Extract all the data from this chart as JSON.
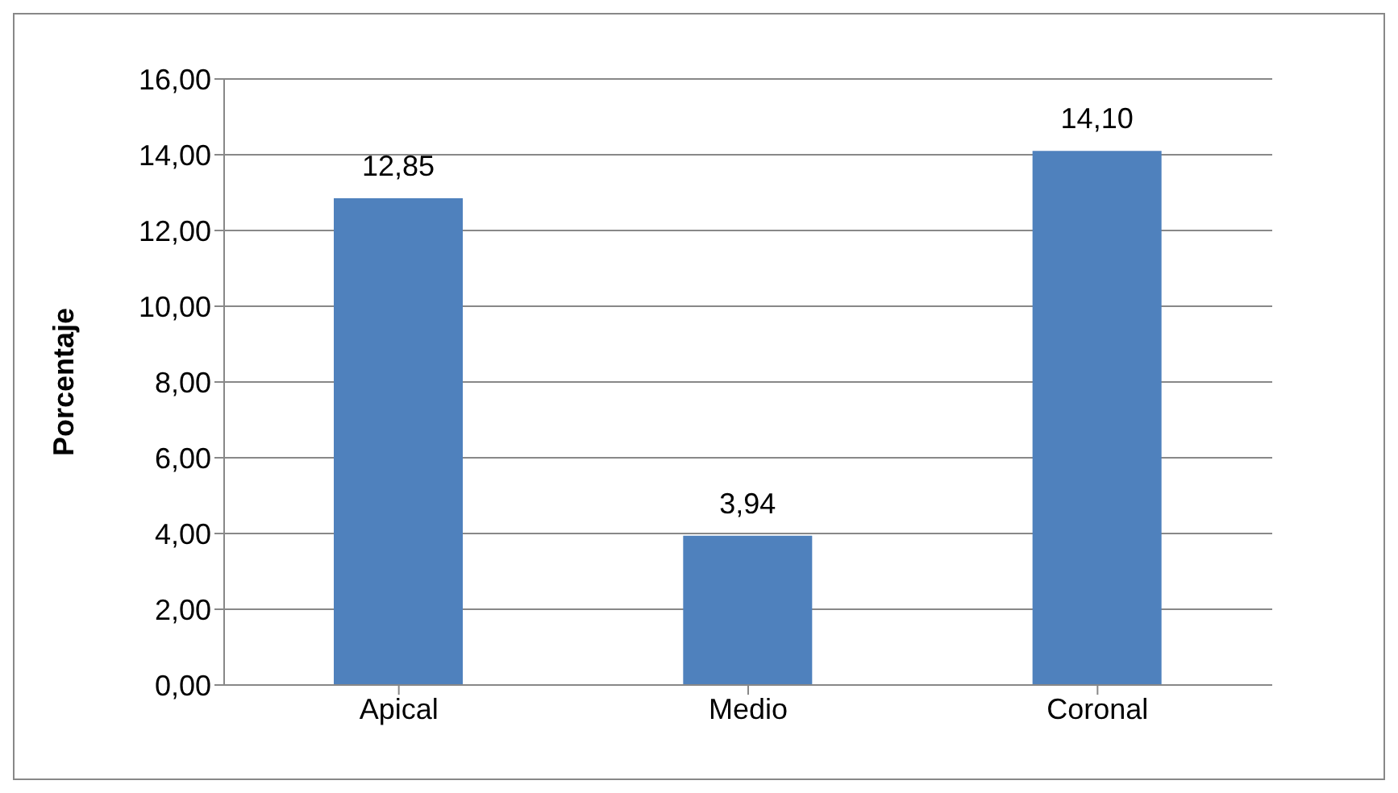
{
  "chart_data": {
    "type": "bar",
    "ylabel": "Porcentaje",
    "categories": [
      "Apical",
      "Medio",
      "Coronal"
    ],
    "values": [
      12.85,
      3.94,
      14.1
    ],
    "value_labels": [
      "12,85",
      "3,94",
      "14,10"
    ],
    "color": "#4f81bd",
    "ylim": [
      0,
      16
    ],
    "yticks": [
      {
        "value": 0,
        "label": "0,00"
      },
      {
        "value": 2,
        "label": "2,00"
      },
      {
        "value": 4,
        "label": "4,00"
      },
      {
        "value": 6,
        "label": "6,00"
      },
      {
        "value": 8,
        "label": "8,00"
      },
      {
        "value": 10,
        "label": "10,00"
      },
      {
        "value": 12,
        "label": "12,00"
      },
      {
        "value": 14,
        "label": "14,00"
      },
      {
        "value": 16,
        "label": "16,00"
      }
    ],
    "grid": "y"
  }
}
